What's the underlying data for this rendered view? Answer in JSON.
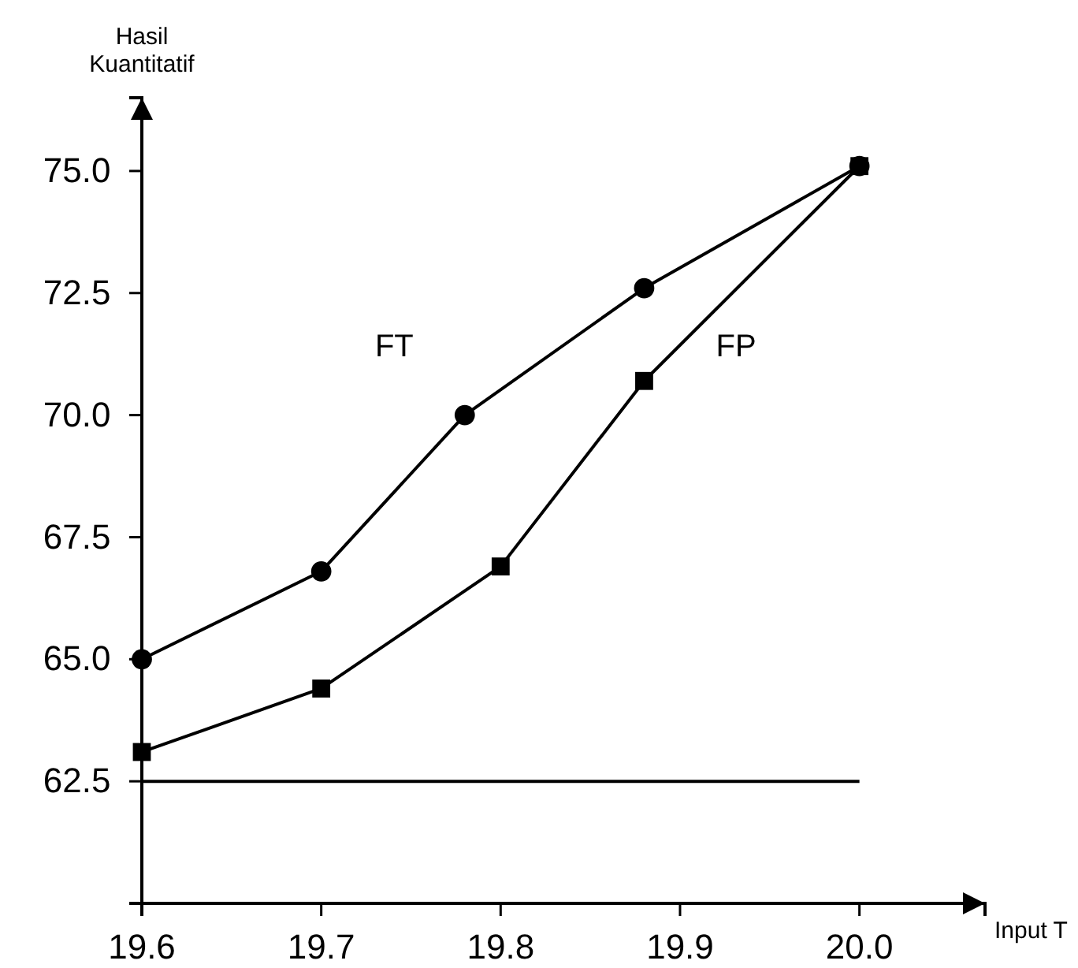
{
  "chart_data": {
    "type": "line",
    "ylabel": "Hasil Kuantitatif",
    "xlabel": "Input T",
    "xlim": [
      19.6,
      20.07
    ],
    "xticks": [
      19.6,
      19.7,
      19.8,
      19.9,
      {
        "value": 20.0,
        "label": "20.0"
      }
    ],
    "ylim": [
      60,
      76.5
    ],
    "yticks": [
      62.5,
      {
        "value": 65,
        "label": "65.0"
      },
      67.5,
      {
        "value": 70,
        "label": "70.0"
      },
      72.5,
      {
        "value": 75,
        "label": "75.0"
      }
    ],
    "series": [
      {
        "name": "FT",
        "color": "#000000",
        "marker": "circle",
        "x": [
          19.6,
          19.7,
          19.78,
          19.88,
          20.0
        ],
        "values": [
          65.0,
          66.8,
          70.0,
          72.6,
          75.1
        ]
      },
      {
        "name": "FP",
        "color": "#000000",
        "marker": "square",
        "x": [
          19.6,
          19.7,
          19.8,
          19.88,
          20.0
        ],
        "values": [
          63.1,
          64.4,
          66.9,
          70.7,
          75.1
        ]
      }
    ],
    "ref_lines": [
      {
        "axis": "y",
        "value": 62.5,
        "color": "#000000"
      }
    ],
    "grid": false,
    "legend": false
  }
}
